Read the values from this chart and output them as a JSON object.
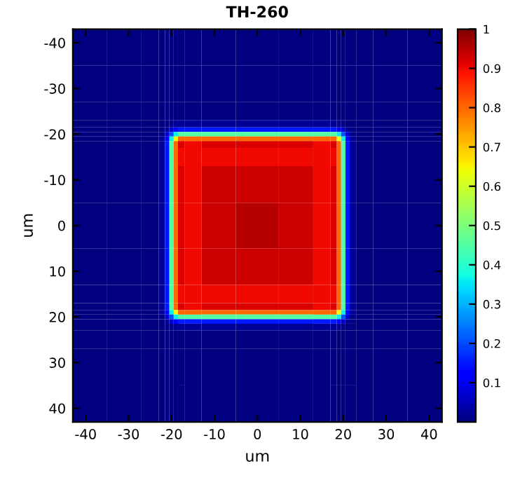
{
  "chart_data": {
    "type": "heatmap",
    "title": "TH-260",
    "xlabel": "um",
    "ylabel": "um",
    "x": [
      -40,
      -30,
      -24,
      -22,
      -21,
      -20,
      -19,
      -18,
      -16,
      -10,
      0,
      10,
      16,
      18,
      19,
      20,
      21,
      22,
      24,
      30,
      40
    ],
    "y": [
      -40,
      -30,
      -24,
      -22,
      -21,
      -20,
      -19,
      -18,
      -16,
      -10,
      0,
      10,
      16,
      18,
      19,
      20,
      21,
      22,
      24,
      30,
      40
    ],
    "xlim": [
      -43,
      43
    ],
    "ylim": [
      43,
      -43
    ],
    "xticks": [
      -40,
      -30,
      -20,
      -10,
      0,
      10,
      20,
      30,
      40
    ],
    "yticks": [
      -40,
      -30,
      -20,
      -10,
      0,
      10,
      20,
      30,
      40
    ],
    "clim": [
      0,
      1
    ],
    "cticks": [
      0.1,
      0.2,
      0.3,
      0.4,
      0.5,
      0.6,
      0.7,
      0.8,
      0.9,
      1
    ],
    "cells": [
      [
        0,
        0,
        0,
        0,
        0,
        0,
        0,
        0,
        0,
        0,
        0,
        0,
        0,
        0,
        0,
        0,
        0,
        0,
        0,
        0,
        0
      ],
      [
        0,
        0,
        0,
        0,
        0,
        0,
        0,
        0,
        0,
        0,
        0,
        0,
        0,
        0,
        0,
        0,
        0,
        0,
        0,
        0,
        0
      ],
      [
        0,
        0,
        0,
        0,
        0,
        0,
        0,
        0,
        0,
        0,
        0,
        0,
        0,
        0,
        0,
        0,
        0,
        0,
        0,
        0,
        0
      ],
      [
        0,
        0,
        0,
        0,
        0,
        0.01,
        0.02,
        0.02,
        0.02,
        0.02,
        0.02,
        0.02,
        0.02,
        0.02,
        0.02,
        0.01,
        0,
        0,
        0,
        0,
        0
      ],
      [
        0,
        0,
        0,
        0,
        0.02,
        0.07,
        0.12,
        0.15,
        0.15,
        0.15,
        0.15,
        0.15,
        0.15,
        0.15,
        0.12,
        0.07,
        0.02,
        0,
        0,
        0,
        0
      ],
      [
        0,
        0,
        0,
        0.01,
        0.07,
        0.2,
        0.36,
        0.45,
        0.45,
        0.45,
        0.45,
        0.45,
        0.45,
        0.45,
        0.36,
        0.2,
        0.07,
        0.01,
        0,
        0,
        0
      ],
      [
        0,
        0,
        0,
        0.02,
        0.12,
        0.36,
        0.64,
        0.8,
        0.8,
        0.8,
        0.8,
        0.8,
        0.8,
        0.8,
        0.64,
        0.36,
        0.12,
        0.02,
        0,
        0,
        0
      ],
      [
        0,
        0,
        0,
        0.02,
        0.15,
        0.45,
        0.8,
        0.92,
        0.9,
        0.92,
        0.92,
        0.92,
        0.9,
        0.92,
        0.8,
        0.45,
        0.15,
        0.02,
        0,
        0,
        0
      ],
      [
        0,
        0,
        0,
        0.02,
        0.15,
        0.45,
        0.8,
        0.9,
        0.9,
        0.9,
        0.9,
        0.9,
        0.9,
        0.9,
        0.8,
        0.45,
        0.15,
        0.02,
        0,
        0,
        0
      ],
      [
        0,
        0,
        0,
        0.02,
        0.15,
        0.45,
        0.8,
        0.92,
        0.9,
        0.93,
        0.93,
        0.93,
        0.9,
        0.92,
        0.8,
        0.45,
        0.15,
        0.02,
        0,
        0,
        0
      ],
      [
        0,
        0,
        0,
        0.02,
        0.15,
        0.45,
        0.8,
        0.92,
        0.9,
        0.93,
        0.95,
        0.93,
        0.9,
        0.92,
        0.8,
        0.45,
        0.15,
        0.02,
        0,
        0,
        0
      ],
      [
        0,
        0,
        0,
        0.02,
        0.15,
        0.45,
        0.8,
        0.92,
        0.9,
        0.93,
        0.93,
        0.93,
        0.9,
        0.92,
        0.8,
        0.45,
        0.15,
        0.02,
        0,
        0,
        0
      ],
      [
        0,
        0,
        0,
        0.02,
        0.15,
        0.45,
        0.8,
        0.9,
        0.9,
        0.9,
        0.9,
        0.9,
        0.9,
        0.9,
        0.8,
        0.45,
        0.15,
        0.02,
        0,
        0,
        0
      ],
      [
        0,
        0,
        0,
        0.02,
        0.15,
        0.45,
        0.8,
        0.92,
        0.9,
        0.92,
        0.92,
        0.92,
        0.9,
        0.92,
        0.8,
        0.45,
        0.15,
        0.02,
        0,
        0,
        0
      ],
      [
        0,
        0,
        0,
        0.02,
        0.12,
        0.36,
        0.64,
        0.8,
        0.8,
        0.8,
        0.8,
        0.8,
        0.8,
        0.8,
        0.64,
        0.36,
        0.12,
        0.02,
        0,
        0,
        0
      ],
      [
        0,
        0,
        0,
        0.01,
        0.07,
        0.2,
        0.36,
        0.45,
        0.45,
        0.45,
        0.45,
        0.45,
        0.45,
        0.45,
        0.36,
        0.2,
        0.07,
        0.01,
        0,
        0,
        0
      ],
      [
        0,
        0,
        0,
        0,
        0.02,
        0.07,
        0.12,
        0.15,
        0.15,
        0.15,
        0.15,
        0.15,
        0.15,
        0.15,
        0.12,
        0.07,
        0.02,
        0,
        0,
        0,
        0
      ],
      [
        0,
        0,
        0,
        0,
        0,
        0.01,
        0.02,
        0.02,
        0.02,
        0.02,
        0.02,
        0.02,
        0.02,
        0.02,
        0.02,
        0.01,
        0,
        0,
        0,
        0,
        0
      ],
      [
        0,
        0,
        0,
        0,
        0,
        0,
        0,
        0,
        0,
        0,
        0,
        0,
        0,
        0,
        0,
        0,
        0,
        0,
        0,
        0,
        0
      ],
      [
        0,
        0,
        0,
        0,
        0,
        0,
        0,
        0,
        0,
        0,
        0,
        0,
        0,
        0,
        0,
        0,
        0,
        0,
        0,
        0,
        0
      ],
      [
        0,
        0,
        0,
        0,
        0,
        0,
        0,
        0,
        0,
        0,
        0,
        0,
        0,
        0,
        0,
        0,
        0,
        0,
        0,
        0,
        0
      ]
    ]
  }
}
